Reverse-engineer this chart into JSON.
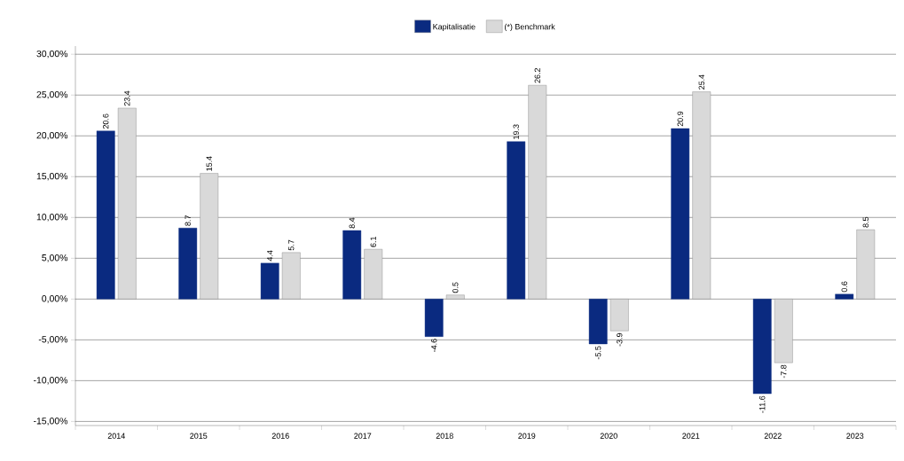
{
  "chart_data": {
    "type": "bar",
    "categories": [
      "2014",
      "2015",
      "2016",
      "2017",
      "2018",
      "2019",
      "2020",
      "2021",
      "2022",
      "2023"
    ],
    "series": [
      {
        "name": "Kapitalisatie",
        "color": "#0a2a80",
        "values": [
          20.6,
          8.7,
          4.4,
          8.4,
          -4.6,
          19.3,
          -5.5,
          20.9,
          -11.6,
          0.6
        ]
      },
      {
        "name": "(*) Benchmark",
        "color": "#d9d9d9",
        "values": [
          23.4,
          15.4,
          5.7,
          6.1,
          0.5,
          26.2,
          -3.9,
          25.4,
          -7.8,
          8.5
        ]
      }
    ],
    "ylim": [
      -15.5,
      31
    ],
    "yticks": [
      {
        "value": -15,
        "label": "-15,00%"
      },
      {
        "value": -10,
        "label": "-10,00%"
      },
      {
        "value": -5,
        "label": "-5,00%"
      },
      {
        "value": 0,
        "label": "0,00%"
      },
      {
        "value": 5,
        "label": "5,00%"
      },
      {
        "value": 10,
        "label": "10,00%"
      },
      {
        "value": 15,
        "label": "15,00%"
      },
      {
        "value": 20,
        "label": "20,00%"
      },
      {
        "value": 25,
        "label": "25,00%"
      },
      {
        "value": 30,
        "label": "30,00%"
      }
    ],
    "grid": "y",
    "data_labels": true,
    "legend": "top"
  }
}
